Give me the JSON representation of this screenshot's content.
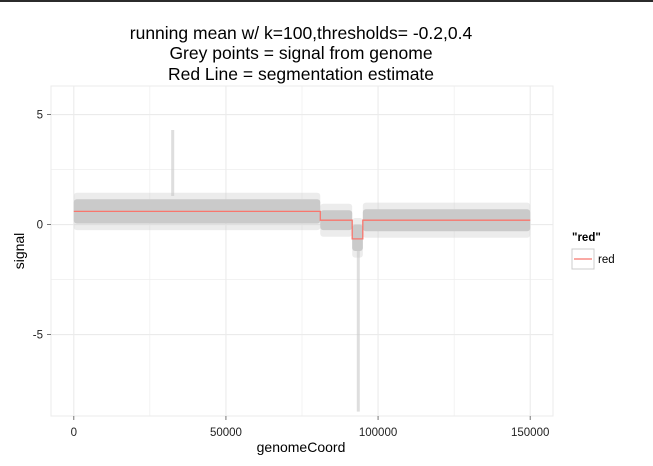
{
  "chart_data": {
    "type": "line",
    "title": "running mean w/ k=100,thresholds= -0.2,0.4",
    "subtitle": [
      "Grey points = signal from genome",
      "Red Line = segmentation estimate"
    ],
    "xlabel": "genomeCoord",
    "ylabel": "signal",
    "xlim": [
      -7500,
      157500
    ],
    "ylim": [
      -8.7,
      6.3
    ],
    "x_ticks": [
      {
        "value": 0,
        "label": "0"
      },
      {
        "value": 50000,
        "label": "50000"
      },
      {
        "value": 100000,
        "label": "100000"
      },
      {
        "value": 150000,
        "label": "150000"
      }
    ],
    "y_ticks": [
      {
        "value": 5,
        "label": "5"
      },
      {
        "value": 0,
        "label": "0"
      },
      {
        "value": -5,
        "label": "-5"
      }
    ],
    "grid": true,
    "background": "#ffffff",
    "grid_color": "#ebebeb",
    "points": {
      "description_color": "#c8c8c8",
      "bands": [
        {
          "x_start": 0,
          "x_end": 81000,
          "center": 0.6,
          "halfwidth": 0.55,
          "outer": 0.85
        },
        {
          "x_start": 81000,
          "x_end": 91500,
          "center": 0.2,
          "halfwidth": 0.45,
          "outer": 0.75
        },
        {
          "x_start": 91500,
          "x_end": 95000,
          "center": -0.6,
          "halfwidth": 0.6,
          "outer": 0.9
        },
        {
          "x_start": 95000,
          "x_end": 150000,
          "center": 0.2,
          "halfwidth": 0.5,
          "outer": 0.8
        }
      ],
      "spikes": [
        {
          "x": 32500,
          "y_min": 1.3,
          "y_max": 4.3
        },
        {
          "x": 93500,
          "y_min": -8.5,
          "y_max": -1.2
        }
      ]
    },
    "series": [
      {
        "name": "red",
        "color": "#f8766d",
        "x": [
          0,
          81000,
          81000,
          91500,
          91500,
          95000,
          95000,
          150000
        ],
        "y": [
          0.6,
          0.6,
          0.2,
          0.2,
          -0.65,
          -0.65,
          0.2,
          0.2
        ]
      }
    ],
    "legend": {
      "title": "\"red\"",
      "position": "right",
      "entries": [
        {
          "label": "red",
          "color": "#f8766d"
        }
      ]
    }
  }
}
